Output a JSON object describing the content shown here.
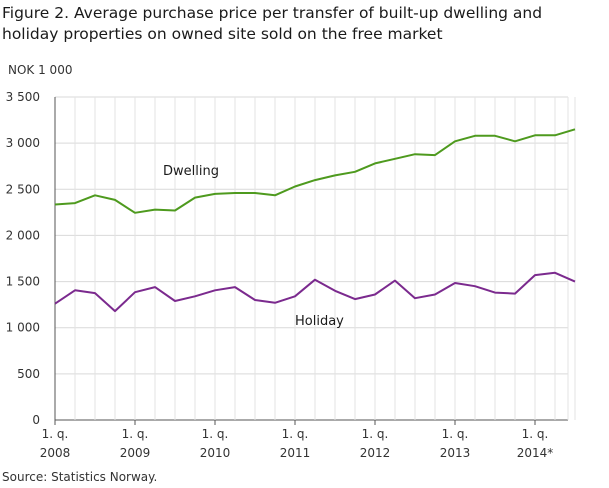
{
  "title": "Figure 2. Average purchase price per transfer of built-up dwelling and holiday properties on owned site sold on the free market",
  "unit_label": "NOK 1 000",
  "source": "Source: Statistics Norway.",
  "chart_data": {
    "type": "line",
    "title": "Figure 2. Average purchase price per transfer of built-up dwelling and holiday properties on owned site sold on the free market",
    "ylabel": "NOK 1 000",
    "ylim": [
      0,
      3500
    ],
    "yticks": [
      0,
      500,
      1000,
      1500,
      2000,
      2500,
      3000,
      3500
    ],
    "ytick_labels": [
      "0",
      "500",
      "1 000",
      "1 500",
      "2 000",
      "2 500",
      "3 000",
      "3 500"
    ],
    "xticks": [
      {
        "line1": "1. q.",
        "line2": "2008"
      },
      {
        "line1": "1. q.",
        "line2": "2009"
      },
      {
        "line1": "1. q.",
        "line2": "2010"
      },
      {
        "line1": "1. q.",
        "line2": "2011"
      },
      {
        "line1": "1. q.",
        "line2": "2012"
      },
      {
        "line1": "1. q.",
        "line2": "2013"
      },
      {
        "line1": "1. q.",
        "line2": "2014*"
      }
    ],
    "x": [
      "2008Q1",
      "2008Q2",
      "2008Q3",
      "2008Q4",
      "2009Q1",
      "2009Q2",
      "2009Q3",
      "2009Q4",
      "2010Q1",
      "2010Q2",
      "2010Q3",
      "2010Q4",
      "2011Q1",
      "2011Q2",
      "2011Q3",
      "2011Q4",
      "2012Q1",
      "2012Q2",
      "2012Q3",
      "2012Q4",
      "2013Q1",
      "2013Q2",
      "2013Q3",
      "2013Q4",
      "2014Q1",
      "2014Q2",
      "2014Q3"
    ],
    "grid": true,
    "legend": "inline",
    "series": [
      {
        "name": "Dwelling",
        "color": "#4e9a1e",
        "values": [
          2335,
          2350,
          2435,
          2385,
          2245,
          2280,
          2270,
          2410,
          2450,
          2460,
          2460,
          2435,
          2530,
          2600,
          2650,
          2690,
          2780,
          2830,
          2880,
          2870,
          3020,
          3080,
          3080,
          3020,
          3085,
          3085,
          3150
        ]
      },
      {
        "name": "Holiday",
        "color": "#7b2a8e",
        "values": [
          1260,
          1405,
          1375,
          1180,
          1385,
          1440,
          1290,
          1340,
          1405,
          1440,
          1300,
          1270,
          1340,
          1520,
          1400,
          1310,
          1360,
          1510,
          1320,
          1360,
          1485,
          1450,
          1380,
          1370,
          1570,
          1595,
          1500
        ]
      }
    ]
  }
}
